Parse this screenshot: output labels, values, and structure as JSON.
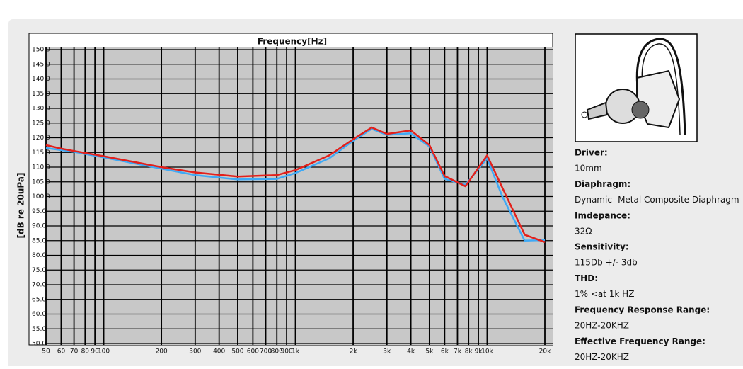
{
  "chart_data": {
    "type": "line",
    "title": "Frequency[Hz]",
    "y_label": "[dB re 20uPa]",
    "log_x": true,
    "grid": true,
    "x": [
      50,
      60,
      70,
      100,
      200,
      300,
      500,
      800,
      1000,
      1500,
      2000,
      2500,
      3000,
      4000,
      5000,
      6000,
      7700,
      10000,
      12000,
      15700,
      20000
    ],
    "series": [
      {
        "color": "#3fa9f5",
        "values": [
          116.5,
          115.8,
          115.2,
          113.3,
          109.5,
          107.3,
          105.8,
          106,
          108,
          113,
          119,
          123,
          121,
          121.5,
          117,
          106,
          104,
          113,
          100,
          85,
          85.2
        ]
      },
      {
        "color": "#e3201b",
        "values": [
          117.5,
          116.3,
          115.5,
          113.7,
          110,
          108.2,
          106.8,
          107.3,
          109,
          114,
          119.5,
          123.5,
          121.3,
          122.5,
          117.5,
          107,
          103.5,
          114,
          103,
          87,
          84.5
        ]
      }
    ],
    "xlim": [
      50,
      20000
    ],
    "xticks": [
      50,
      60,
      70,
      80,
      90,
      100,
      200,
      300,
      400,
      500,
      600,
      700,
      800,
      900,
      {
        "value": 1000,
        "label": "1k"
      },
      {
        "value": 2000,
        "label": "2k"
      },
      {
        "value": 3000,
        "label": "3k"
      },
      {
        "value": 4000,
        "label": "4k"
      },
      {
        "value": 5000,
        "label": "5k"
      },
      {
        "value": 6000,
        "label": "6k"
      },
      {
        "value": 7000,
        "label": "7k"
      },
      {
        "value": 8000,
        "label": "8k"
      },
      {
        "value": 9000,
        "label": "9k"
      },
      {
        "value": 10000,
        "label": "10k"
      },
      {
        "value": 20000,
        "label": "20k"
      }
    ],
    "ylim": [
      50,
      150
    ],
    "yticks": [
      {
        "value": 50,
        "label": "50.0"
      },
      {
        "value": 55,
        "label": "55.0"
      },
      {
        "value": 60,
        "label": "60.0"
      },
      {
        "value": 65,
        "label": "65.0"
      },
      {
        "value": 70,
        "label": "70.0"
      },
      {
        "value": 75,
        "label": "75.0"
      },
      {
        "value": 80,
        "label": "80.0"
      },
      {
        "value": 85,
        "label": "85.0"
      },
      {
        "value": 90,
        "label": "90.0"
      },
      {
        "value": 95,
        "label": "95.0"
      },
      {
        "value": 100,
        "label": "100.0"
      },
      {
        "value": 105,
        "label": "105.0"
      },
      {
        "value": 110,
        "label": "110.0"
      },
      {
        "value": 115,
        "label": "115.0"
      },
      {
        "value": 120,
        "label": "120.0"
      },
      {
        "value": 125,
        "label": "125.0"
      },
      {
        "value": 130,
        "label": "130.0"
      },
      {
        "value": 135,
        "label": "135.0"
      },
      {
        "value": 140,
        "label": "140.0"
      },
      {
        "value": 145,
        "label": "145.0"
      },
      {
        "value": 150,
        "label": "150.0"
      }
    ]
  },
  "specs": [
    {
      "label": "Driver:",
      "value": "10mm"
    },
    {
      "label": "Diaphragm:",
      "value": "Dynamic -Metal Composite Diaphragm"
    },
    {
      "label": "Imdepance:",
      "value": "32Ω"
    },
    {
      "label": "Sensitivity:",
      "value": "115Db +/- 3db"
    },
    {
      "label": "THD:",
      "value": "1% <at 1k HZ"
    },
    {
      "label": "Frequency Response Range:",
      "value": "20HZ-20KHZ"
    },
    {
      "label": "Effective Frequency Range:",
      "value": "20HZ-20KHZ"
    }
  ]
}
